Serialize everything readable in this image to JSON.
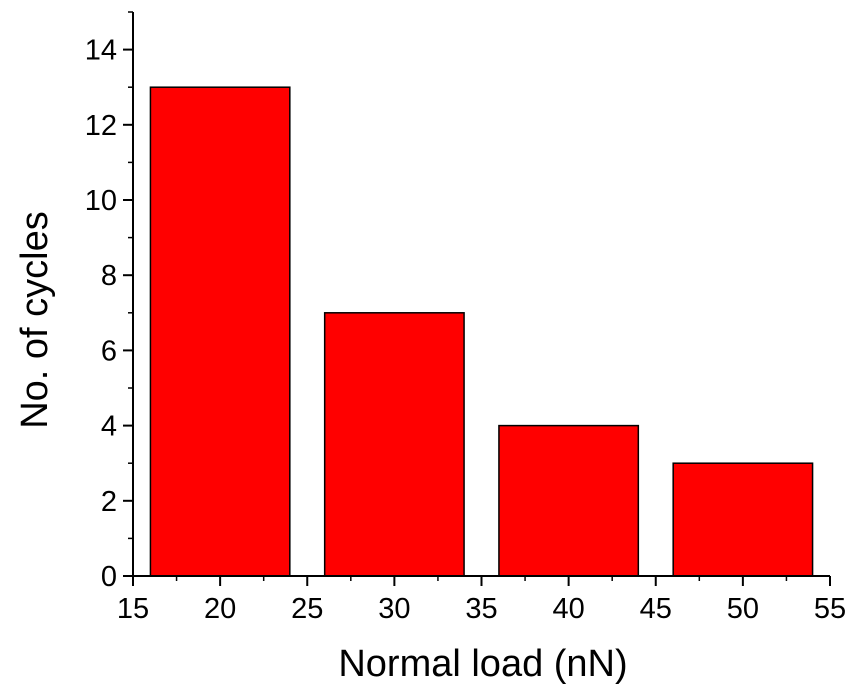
{
  "chart_data": {
    "type": "bar",
    "title": "",
    "xlabel": "Normal load (nN)",
    "ylabel": "No. of cycles",
    "x": [
      20,
      30,
      40,
      50
    ],
    "bar_width": 8,
    "values": [
      13,
      7,
      4,
      3
    ],
    "xlim": [
      15,
      55
    ],
    "ylim": [
      0,
      15
    ],
    "x_ticks": [
      15,
      20,
      25,
      30,
      35,
      40,
      45,
      50,
      55
    ],
    "x_tick_labels": [
      "15",
      "20",
      "25",
      "30",
      "35",
      "40",
      "45",
      "50",
      "55"
    ],
    "y_ticks": [
      0,
      2,
      4,
      6,
      8,
      10,
      12,
      14
    ],
    "y_tick_labels": [
      "0",
      "2",
      "4",
      "6",
      "8",
      "10",
      "12",
      "14"
    ],
    "grid": false,
    "legend": "none",
    "bar_color": "#ff0000",
    "bar_edge_color": "#000000"
  }
}
